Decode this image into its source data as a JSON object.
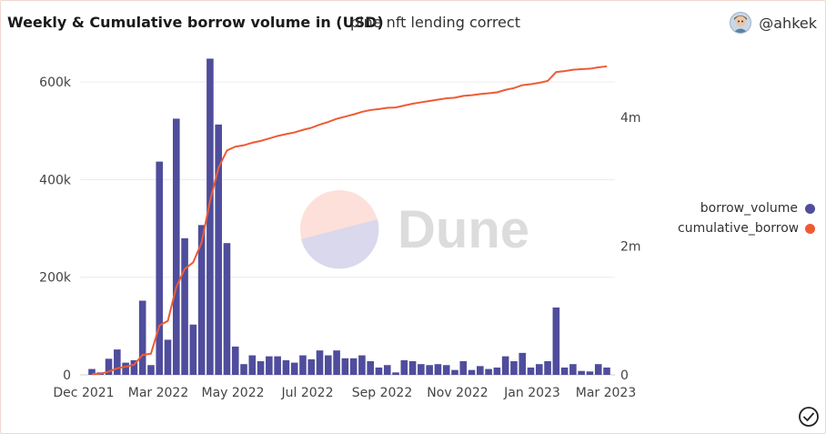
{
  "header": {
    "title": "Weekly & Cumulative borrow volume in (USD)",
    "subtitle": "pine nft lending correct",
    "username": "@ahkek"
  },
  "legend": [
    {
      "label": "borrow_volume",
      "color": "#4f4d9c"
    },
    {
      "label": "cumulative_borrow",
      "color": "#ef5a34"
    }
  ],
  "watermark": {
    "text": "Dune"
  },
  "chart_data": {
    "type": "bar",
    "x_tick_labels": [
      "Dec 2021",
      "Mar 2022",
      "May 2022",
      "Jul 2022",
      "Sep 2022",
      "Nov 2022",
      "Jan 2023",
      "Mar 2023"
    ],
    "y_left_ticks": [
      "0",
      "200k",
      "400k",
      "600k"
    ],
    "y_right_ticks": [
      "0",
      "2m",
      "4m"
    ],
    "y_left_range": [
      0,
      660000
    ],
    "y_right_range": [
      0,
      5000000
    ],
    "series": [
      {
        "name": "borrow_volume",
        "type": "bar",
        "axis": "left",
        "color": "#4f4d9c",
        "values": [
          12000,
          5000,
          33000,
          52000,
          25000,
          30000,
          152000,
          20000,
          437000,
          72000,
          525000,
          280000,
          103000,
          307000,
          648000,
          513000,
          270000,
          58000,
          22000,
          40000,
          28000,
          38000,
          38000,
          30000,
          25000,
          40000,
          32000,
          50000,
          40000,
          50000,
          34000,
          34000,
          40000,
          28000,
          15000,
          20000,
          5000,
          30000,
          28000,
          22000,
          20000,
          22000,
          20000,
          10000,
          28000,
          10000,
          18000,
          12000,
          15000,
          38000,
          28000,
          45000,
          15000,
          22000,
          28000,
          138000,
          15000,
          22000,
          8000,
          7000,
          22000,
          15000
        ]
      },
      {
        "name": "cumulative_borrow",
        "type": "line",
        "axis": "right",
        "color": "#ef5a34",
        "values": [
          12000,
          17000,
          50000,
          102000,
          127000,
          157000,
          309000,
          329000,
          766000,
          838000,
          1363000,
          1643000,
          1746000,
          2053000,
          2701000,
          3214000,
          3484000,
          3542000,
          3564000,
          3604000,
          3632000,
          3670000,
          3708000,
          3738000,
          3763000,
          3803000,
          3835000,
          3885000,
          3925000,
          3975000,
          4009000,
          4043000,
          4083000,
          4111000,
          4126000,
          4146000,
          4151000,
          4181000,
          4209000,
          4231000,
          4251000,
          4273000,
          4293000,
          4303000,
          4331000,
          4341000,
          4359000,
          4371000,
          4386000,
          4424000,
          4452000,
          4497000,
          4512000,
          4534000,
          4562000,
          4700000,
          4715000,
          4737000,
          4745000,
          4752000,
          4774000,
          4789000
        ]
      }
    ]
  }
}
